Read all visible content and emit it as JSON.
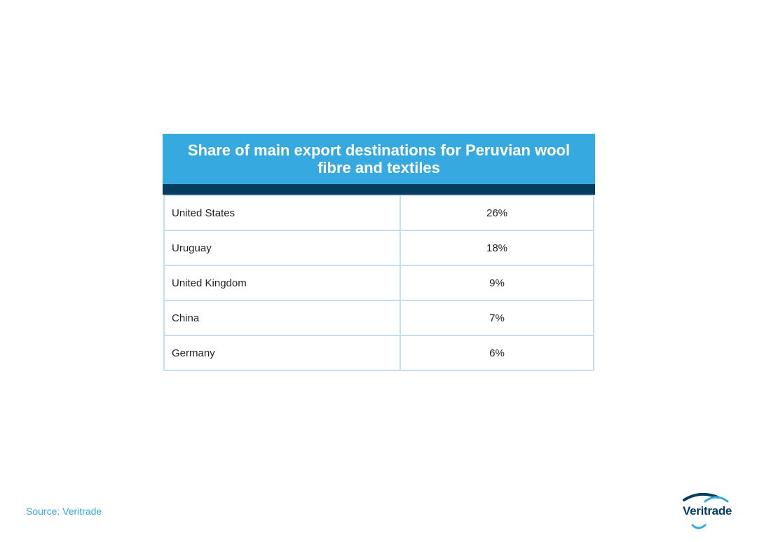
{
  "chart_data": {
    "type": "table",
    "title": "Share of main export destinations for Peruvian wool fibre and textiles",
    "rows": [
      {
        "country": "United States",
        "share": "26%"
      },
      {
        "country": "Uruguay",
        "share": "18%"
      },
      {
        "country": "United Kingdom",
        "share": "9%"
      },
      {
        "country": "China",
        "share": "7%"
      },
      {
        "country": "Germany",
        "share": "6%"
      }
    ]
  },
  "footer": {
    "source": "Source: Veritrade"
  },
  "logo": {
    "text": "Veritrade",
    "icon": "veritrade-swoosh-icon",
    "colors": {
      "dark": "#063d5e",
      "light": "#36a9e1"
    }
  },
  "colors": {
    "title_bar": "#36a9e1",
    "header_band": "#063d5e",
    "grid": "#c3def0"
  }
}
